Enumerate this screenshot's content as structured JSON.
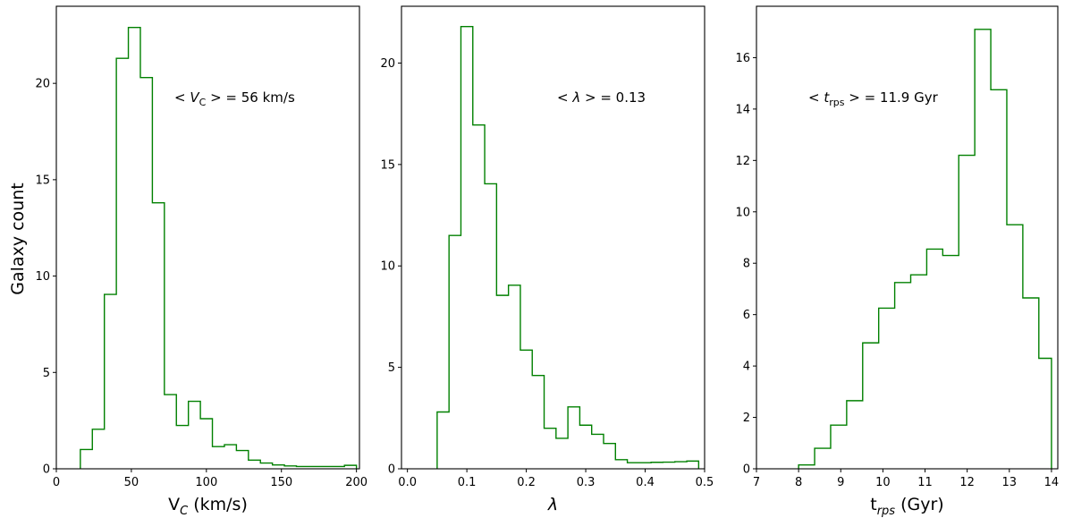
{
  "chart_data": [
    {
      "type": "histogram",
      "ylabel": "Galaxy count",
      "xlabel_main": "V",
      "xlabel_sub": "C",
      "xlabel_rest": " (km/s)",
      "annotation": {
        "pre": "< V",
        "sub": "C",
        "post": " > = 56 km/s"
      },
      "xlim": [
        0,
        202
      ],
      "ylim": [
        0,
        24
      ],
      "xticks": [
        0,
        50,
        100,
        150,
        200
      ],
      "xtick_labels": [
        "0",
        "50",
        "100",
        "150",
        "200"
      ],
      "yticks": [
        0,
        5,
        10,
        15,
        20
      ],
      "ytick_labels": [
        "0",
        "5",
        "10",
        "15",
        "20"
      ],
      "bin_edges": [
        16,
        24,
        32,
        40,
        48,
        56,
        64,
        72,
        80,
        88,
        96,
        104,
        112,
        120,
        128,
        136,
        144,
        152,
        160,
        168,
        176,
        184,
        192,
        200
      ],
      "counts": [
        1.0,
        2.05,
        9.05,
        21.3,
        22.9,
        20.3,
        13.8,
        3.85,
        2.25,
        3.5,
        2.6,
        1.15,
        1.25,
        0.95,
        0.45,
        0.3,
        0.2,
        0.15,
        0.12,
        0.12,
        0.12,
        0.12,
        0.18
      ],
      "color": "#008000"
    },
    {
      "type": "histogram",
      "ylabel": "",
      "xlabel_main": "λ",
      "xlabel_sub": "",
      "xlabel_rest": "",
      "annotation": {
        "pre": "< λ",
        "sub": "",
        "post": " > = 0.13"
      },
      "xlim": [
        -0.01,
        0.5
      ],
      "ylim": [
        0,
        22.8
      ],
      "xticks": [
        0.0,
        0.1,
        0.2,
        0.3,
        0.4,
        0.5
      ],
      "xtick_labels": [
        "0.0",
        "0.1",
        "0.2",
        "0.3",
        "0.4",
        "0.5"
      ],
      "yticks": [
        0,
        5,
        10,
        15,
        20
      ],
      "ytick_labels": [
        "0",
        "5",
        "10",
        "15",
        "20"
      ],
      "bin_edges": [
        0.05,
        0.07,
        0.09,
        0.11,
        0.13,
        0.15,
        0.17,
        0.19,
        0.21,
        0.23,
        0.25,
        0.27,
        0.29,
        0.31,
        0.33,
        0.35,
        0.37,
        0.39,
        0.41,
        0.43,
        0.45,
        0.47,
        0.49
      ],
      "counts": [
        2.8,
        11.5,
        21.8,
        16.95,
        14.05,
        8.55,
        9.05,
        5.85,
        4.6,
        2.0,
        1.5,
        3.05,
        2.15,
        1.7,
        1.25,
        0.45,
        0.3,
        0.3,
        0.32,
        0.33,
        0.35,
        0.38
      ],
      "color": "#008000"
    },
    {
      "type": "histogram",
      "ylabel": "",
      "xlabel_main": "t",
      "xlabel_sub": "rps",
      "xlabel_rest": " (Gyr)",
      "annotation": {
        "pre": "< t",
        "sub": "rps",
        "post": " > = 11.9 Gyr"
      },
      "xlim": [
        7,
        14.15
      ],
      "ylim": [
        0,
        18
      ],
      "xticks": [
        7,
        8,
        9,
        10,
        11,
        12,
        13,
        14
      ],
      "xtick_labels": [
        "7",
        "8",
        "9",
        "10",
        "11",
        "12",
        "13",
        "14"
      ],
      "yticks": [
        0,
        2,
        4,
        6,
        8,
        10,
        12,
        14,
        16
      ],
      "ytick_labels": [
        "0",
        "2",
        "4",
        "6",
        "8",
        "10",
        "12",
        "14",
        "16"
      ],
      "bin_edges": [
        8.0,
        8.38,
        8.76,
        9.14,
        9.52,
        9.9,
        10.28,
        10.66,
        11.04,
        11.42,
        11.8,
        12.18,
        12.56,
        12.94,
        13.32,
        13.7,
        14.0
      ],
      "counts": [
        0.15,
        0.8,
        1.7,
        2.65,
        4.9,
        6.25,
        7.25,
        7.55,
        8.55,
        8.3,
        12.2,
        17.1,
        14.75,
        9.5,
        6.65,
        4.3
      ],
      "color": "#008000"
    }
  ]
}
